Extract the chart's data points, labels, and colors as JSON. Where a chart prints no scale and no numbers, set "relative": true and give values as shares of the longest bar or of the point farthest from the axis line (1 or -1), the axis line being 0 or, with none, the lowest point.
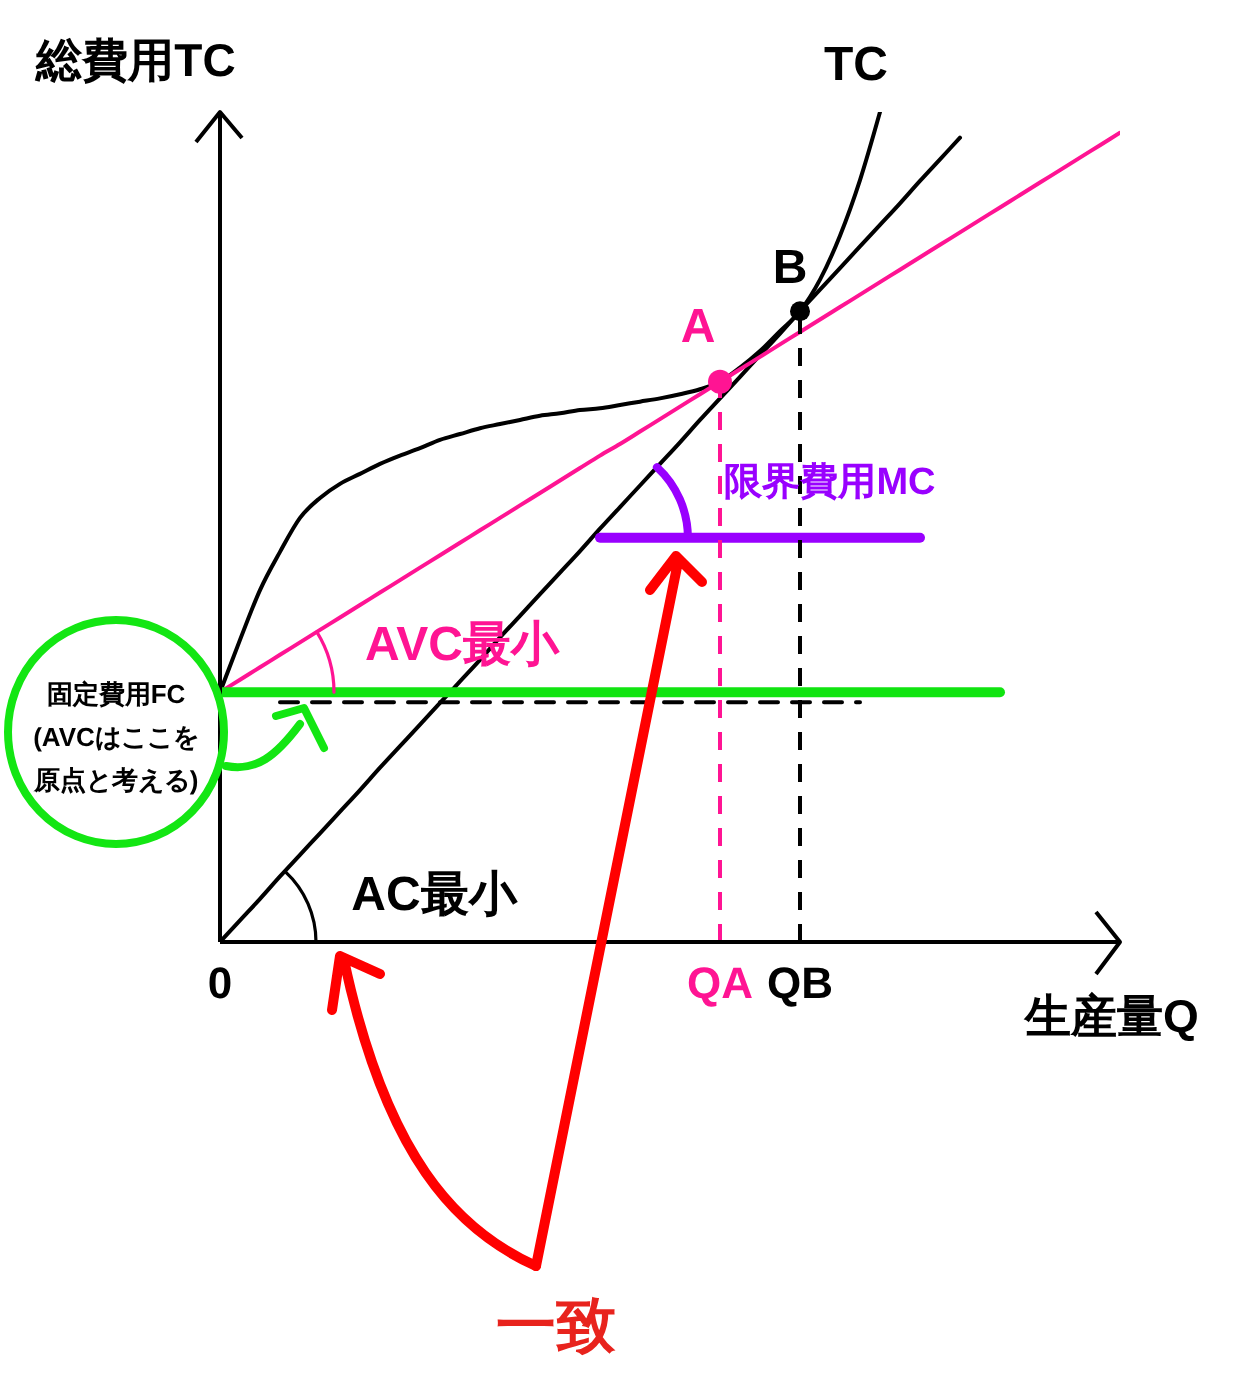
{
  "chart_data": {
    "type": "line",
    "relative": true,
    "xlabel": "生産量Q",
    "ylabel": "総費用TC",
    "tick_labels": "x",
    "categories": [
      "0",
      null,
      null,
      null,
      null,
      null,
      null,
      null,
      null,
      null,
      null,
      null,
      null,
      null,
      null,
      null,
      null,
      null,
      null,
      null,
      null,
      null,
      null,
      null,
      null,
      "QA",
      null,
      null,
      null,
      "QB",
      null,
      null,
      null,
      null,
      null,
      null,
      null,
      null,
      null,
      null,
      null,
      null,
      null,
      null,
      null,
      null
    ],
    "series": [
      {
        "name": "TC",
        "color": "#000000",
        "values": [
          0.301,
          0.364,
          0.424,
          0.47,
          0.511,
          0.535,
          0.552,
          0.564,
          0.576,
          0.586,
          0.595,
          0.605,
          0.612,
          0.619,
          0.624,
          0.629,
          0.634,
          0.637,
          0.641,
          0.643,
          0.647,
          0.651,
          0.655,
          0.66,
          0.666,
          0.675,
          0.692,
          0.712,
          0.736,
          0.76,
          0.798,
          0.851,
          0.918,
          1,
          null,
          null,
          null,
          null,
          null,
          null,
          null,
          null,
          null,
          null,
          null,
          null
        ]
      },
      {
        "color": "#000000",
        "values": [
          0,
          0.026,
          0.052,
          0.079,
          0.105,
          0.131,
          0.157,
          0.183,
          0.21,
          0.236,
          0.262,
          0.288,
          0.314,
          0.34,
          0.367,
          0.393,
          0.419,
          0.445,
          0.471,
          0.498,
          0.524,
          0.55,
          0.576,
          0.602,
          0.629,
          0.655,
          0.681,
          0.707,
          0.733,
          0.76,
          0.786,
          0.812,
          0.838,
          0.864,
          0.89,
          0.917,
          0.943,
          0.969,
          null,
          null,
          null,
          null,
          null,
          null,
          null,
          null
        ]
      },
      {
        "color": "#ff1493",
        "values": [
          0.301,
          0.316,
          0.331,
          0.346,
          0.361,
          0.376,
          0.391,
          0.406,
          0.421,
          0.436,
          0.451,
          0.466,
          0.481,
          0.496,
          0.511,
          0.526,
          0.541,
          0.556,
          0.571,
          0.586,
          0.6,
          0.615,
          0.63,
          0.645,
          0.66,
          0.675,
          0.69,
          0.705,
          0.72,
          0.735,
          0.75,
          0.765,
          0.78,
          0.795,
          0.81,
          0.825,
          0.84,
          0.855,
          0.87,
          0.885,
          0.9,
          0.915,
          0.93,
          0.945,
          0.96,
          0.975
        ]
      },
      {
        "color": "#11e411",
        "values": [
          0.301,
          0.301,
          0.301,
          0.301,
          0.301,
          0.301,
          0.301,
          0.301,
          0.301,
          0.301,
          0.301,
          0.301,
          0.301,
          0.301,
          0.301,
          0.301,
          0.301,
          0.301,
          0.301,
          0.301,
          0.301,
          0.301,
          0.301,
          0.301,
          0.301,
          0.301,
          0.301,
          0.301,
          0.301,
          0.301,
          0.301,
          0.301,
          0.301,
          0.301,
          0.301,
          0.301,
          0.301,
          0.301,
          0.301,
          0.301,
          null,
          null,
          null,
          null,
          null,
          null
        ]
      },
      {
        "color": "#000000",
        "line_style": "dashed",
        "values": [
          null,
          null,
          null,
          0.289,
          0.289,
          0.289,
          0.289,
          0.289,
          0.289,
          0.289,
          0.289,
          0.289,
          0.289,
          0.289,
          0.289,
          0.289,
          0.289,
          0.289,
          0.289,
          0.289,
          0.289,
          0.289,
          0.289,
          0.289,
          0.289,
          0.289,
          0.289,
          0.289,
          0.289,
          0.289,
          0.289,
          0.289,
          0.289,
          null,
          null,
          null,
          null,
          null,
          null,
          null,
          null,
          null,
          null,
          null,
          null,
          null
        ]
      },
      {
        "color": "#9900ff",
        "values": [
          null,
          null,
          null,
          null,
          null,
          null,
          null,
          null,
          null,
          null,
          null,
          null,
          null,
          null,
          null,
          null,
          null,
          null,
          null,
          0.487,
          0.487,
          0.487,
          0.487,
          0.487,
          0.487,
          0.487,
          0.487,
          0.487,
          0.487,
          0.487,
          0.487,
          0.487,
          0.487,
          0.487,
          0.487,
          0.487,
          null,
          null,
          null,
          null,
          null,
          null,
          null,
          null,
          null,
          null
        ]
      },
      {
        "type": "lollipop",
        "name": "A",
        "color": "#ff1493",
        "marker": "circle",
        "line_style": "dashed",
        "values": [
          null,
          null,
          null,
          null,
          null,
          null,
          null,
          null,
          null,
          null,
          null,
          null,
          null,
          null,
          null,
          null,
          null,
          null,
          null,
          null,
          null,
          null,
          null,
          null,
          null,
          0.675,
          null,
          null,
          null,
          null,
          null,
          null,
          null,
          null,
          null,
          null,
          null,
          null,
          null,
          null,
          null,
          null,
          null,
          null,
          null,
          null
        ]
      },
      {
        "type": "lollipop",
        "name": "B",
        "color": "#000000",
        "marker": "circle",
        "line_style": "dashed",
        "values": [
          null,
          null,
          null,
          null,
          null,
          null,
          null,
          null,
          null,
          null,
          null,
          null,
          null,
          null,
          null,
          null,
          null,
          null,
          null,
          null,
          null,
          null,
          null,
          null,
          null,
          null,
          null,
          null,
          null,
          0.76,
          null,
          null,
          null,
          null,
          null,
          null,
          null,
          null,
          null,
          null,
          null,
          null,
          null,
          null,
          null,
          null
        ]
      }
    ],
    "annotations": [
      "AVC最小",
      "AC最小",
      "限界費用MC",
      "固定費用FC(AVCはここを原点と考える)",
      "一致"
    ]
  }
}
